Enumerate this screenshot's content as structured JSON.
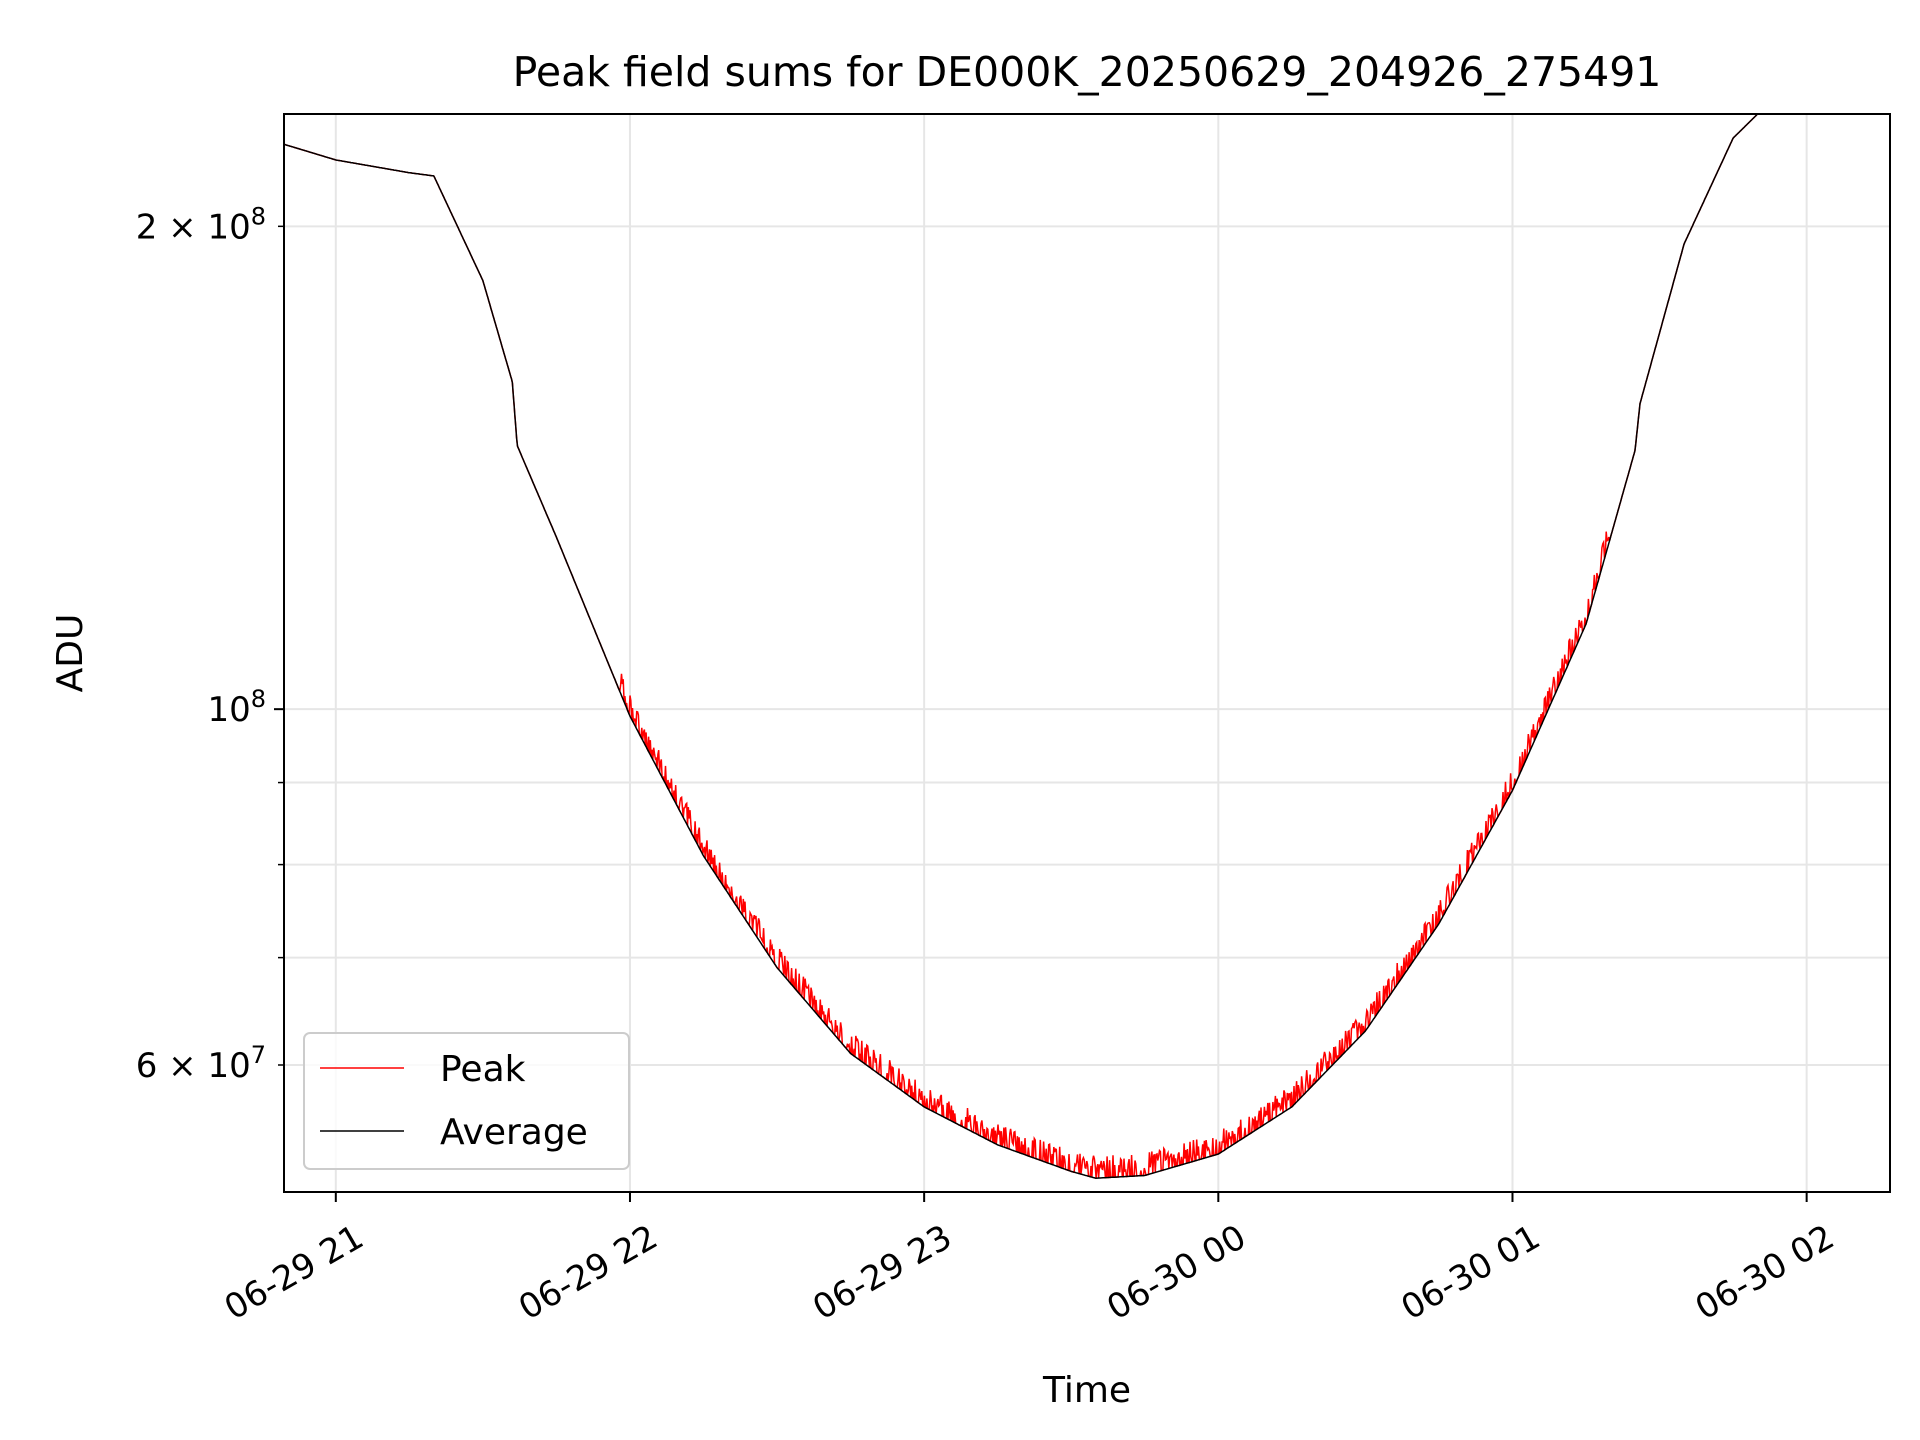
{
  "chart_data": {
    "type": "line",
    "title": "Peak field sums for DE000K_20250629_204926_275491",
    "xlabel": "Time",
    "ylabel": "ADU",
    "yscale": "log",
    "xlim": [
      "2025-06-29 20:49:26",
      "2025-06-30 02:17:00"
    ],
    "ylim": [
      50000000,
      235000000
    ],
    "grid": true,
    "legend_position": "lower-left",
    "x_ticks": [
      "2025-06-29 21:00",
      "2025-06-29 22:00",
      "2025-06-29 23:00",
      "2025-06-30 00:00",
      "2025-06-30 01:00",
      "2025-06-30 02:00"
    ],
    "x_tick_labels": [
      "06-29 21",
      "06-29 22",
      "06-29 23",
      "06-30 00",
      "06-30 01",
      "06-30 02"
    ],
    "y_major_ticks": [
      100000000
    ],
    "y_major_tick_labels": [
      {
        "mant": "10",
        "exp": "8"
      }
    ],
    "y_minor_ticks": [
      60000000,
      70000000,
      80000000,
      90000000,
      200000000
    ],
    "y_minor_tick_labels": [
      {
        "value": 60000000,
        "pre": "6 × 10",
        "exp": "7"
      },
      {
        "value": 200000000,
        "pre": "2 × 10",
        "exp": "8"
      }
    ],
    "series": [
      {
        "name": "Peak",
        "color": "#ff0000"
      },
      {
        "name": "Average",
        "color": "#000000"
      }
    ],
    "x": [
      "2025-06-29 20:49:26",
      "2025-06-29 21:00",
      "2025-06-29 21:15",
      "2025-06-29 21:20",
      "2025-06-29 21:30",
      "2025-06-29 21:36",
      "2025-06-29 21:37",
      "2025-06-29 21:45",
      "2025-06-29 22:00",
      "2025-06-29 22:15",
      "2025-06-29 22:30",
      "2025-06-29 22:45",
      "2025-06-29 23:00",
      "2025-06-29 23:15",
      "2025-06-29 23:30",
      "2025-06-29 23:35",
      "2025-06-29 23:45",
      "2025-06-30 00:00",
      "2025-06-30 00:15",
      "2025-06-30 00:30",
      "2025-06-30 00:45",
      "2025-06-30 01:00",
      "2025-06-30 01:15",
      "2025-06-30 01:25",
      "2025-06-30 01:26",
      "2025-06-30 01:35",
      "2025-06-30 01:45",
      "2025-06-30 01:50",
      "2025-06-30 02:00"
    ],
    "average_values": [
      225000000,
      220000000,
      216000000,
      215000000,
      185000000,
      160000000,
      146000000,
      128000000,
      99000000,
      81000000,
      69000000,
      61000000,
      56500000,
      53500000,
      51500000,
      51000000,
      51200000,
      52800000,
      56500000,
      63000000,
      73500000,
      89000000,
      113000000,
      145000000,
      155000000,
      195000000,
      227000000,
      235000000,
      235000000
    ]
  },
  "legend": {
    "peak_label": "Peak",
    "average_label": "Average"
  }
}
